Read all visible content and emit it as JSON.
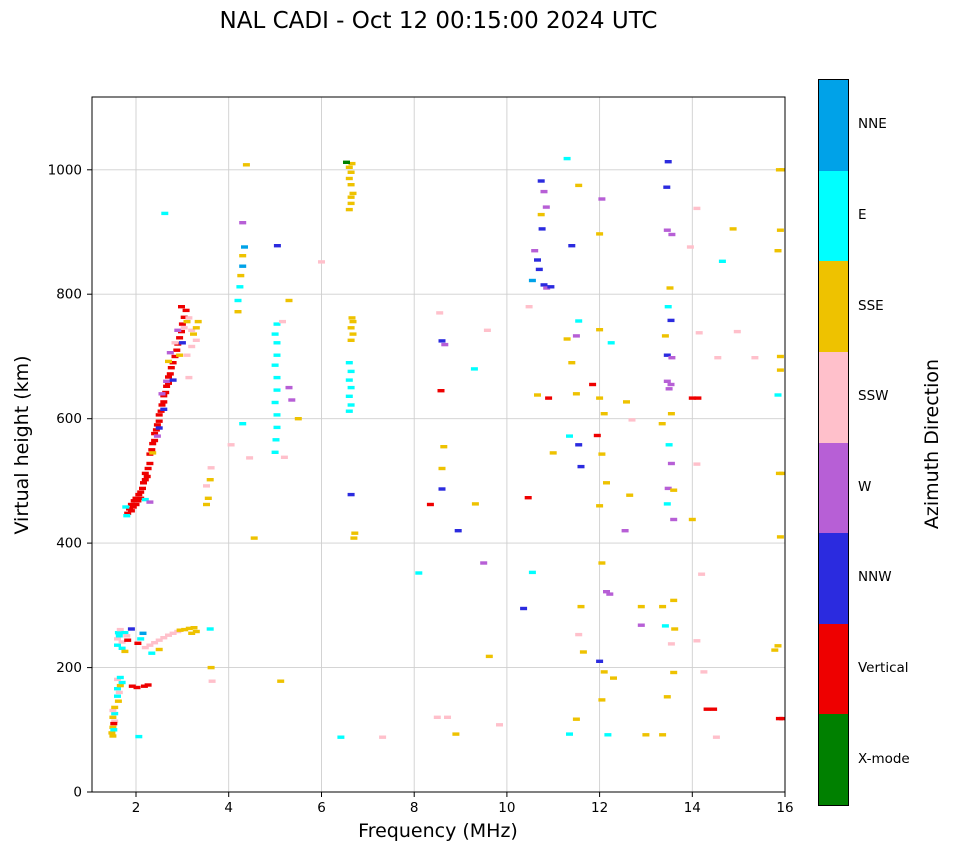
{
  "title": "NAL CADI - Oct 12 00:15:00 2024 UTC",
  "axes": {
    "xlabel": "Frequency (MHz)",
    "ylabel": "Virtual height (km)"
  },
  "colorbar": {
    "title": "Azimuth Direction"
  },
  "chart_data": {
    "type": "scatter",
    "title": "NAL CADI - Oct 12 00:15:00 2024 UTC",
    "xlabel": "Frequency (MHz)",
    "ylabel": "Virtual height (km)",
    "xlim": [
      1.05,
      16
    ],
    "ylim": [
      0,
      1117
    ],
    "xticks": [
      2,
      4,
      6,
      8,
      10,
      12,
      14,
      16
    ],
    "yticks": [
      0,
      200,
      400,
      600,
      800,
      1000
    ],
    "grid": true,
    "legend_position": "right-colorbar",
    "categories": [
      {
        "label": "NNE",
        "color": "#00a2e8"
      },
      {
        "label": "E",
        "color": "#00ffff"
      },
      {
        "label": "SSE",
        "color": "#eec200"
      },
      {
        "label": "SSW",
        "color": "#ffc0cb"
      },
      {
        "label": "W",
        "color": "#b75fd6"
      },
      {
        "label": "NNW",
        "color": "#2b2bdf"
      },
      {
        "label": "Vertical",
        "color": "#ee0000"
      },
      {
        "label": "X-mode",
        "color": "#008000"
      }
    ],
    "points": [
      [
        1.82,
        448,
        6
      ],
      [
        1.86,
        455,
        6
      ],
      [
        1.9,
        452,
        6
      ],
      [
        1.9,
        462,
        6
      ],
      [
        1.94,
        458,
        6
      ],
      [
        1.96,
        468,
        6
      ],
      [
        2.0,
        462,
        6
      ],
      [
        2.0,
        472,
        6
      ],
      [
        2.04,
        468,
        6
      ],
      [
        2.06,
        478,
        6
      ],
      [
        2.1,
        472,
        6
      ],
      [
        2.1,
        482,
        6
      ],
      [
        2.14,
        488,
        6
      ],
      [
        2.16,
        497,
        6
      ],
      [
        2.2,
        502,
        6
      ],
      [
        2.2,
        512,
        6
      ],
      [
        2.24,
        507,
        6
      ],
      [
        2.26,
        520,
        6
      ],
      [
        2.3,
        528,
        6
      ],
      [
        2.3,
        543,
        6
      ],
      [
        2.34,
        550,
        6
      ],
      [
        2.36,
        560,
        6
      ],
      [
        2.4,
        565,
        6
      ],
      [
        2.4,
        576,
        6
      ],
      [
        2.44,
        582,
        6
      ],
      [
        2.46,
        590,
        6
      ],
      [
        2.5,
        596,
        6
      ],
      [
        2.5,
        606,
        6
      ],
      [
        2.54,
        612,
        6
      ],
      [
        2.56,
        622,
        6
      ],
      [
        2.6,
        627,
        6
      ],
      [
        2.6,
        637,
        6
      ],
      [
        2.64,
        642,
        6
      ],
      [
        2.66,
        652,
        6
      ],
      [
        2.7,
        657,
        6
      ],
      [
        2.7,
        667,
        6
      ],
      [
        2.74,
        672,
        6
      ],
      [
        2.76,
        682,
        6
      ],
      [
        2.8,
        690,
        6
      ],
      [
        2.84,
        700,
        6
      ],
      [
        2.88,
        710,
        6
      ],
      [
        2.9,
        720,
        6
      ],
      [
        2.94,
        730,
        6
      ],
      [
        2.98,
        740,
        6
      ],
      [
        3.0,
        752,
        6
      ],
      [
        3.04,
        763,
        6
      ],
      [
        3.08,
        774,
        6
      ],
      [
        2.98,
        780,
        6
      ],
      [
        2.36,
        545,
        2
      ],
      [
        2.46,
        572,
        4
      ],
      [
        2.5,
        585,
        5
      ],
      [
        2.56,
        640,
        4
      ],
      [
        2.6,
        615,
        5
      ],
      [
        2.66,
        660,
        4
      ],
      [
        2.7,
        692,
        2
      ],
      [
        2.74,
        706,
        4
      ],
      [
        2.8,
        662,
        5
      ],
      [
        2.84,
        722,
        3
      ],
      [
        2.9,
        742,
        4
      ],
      [
        2.94,
        702,
        2
      ],
      [
        3.0,
        722,
        5
      ],
      [
        3.04,
        746,
        3
      ],
      [
        3.1,
        756,
        2
      ],
      [
        3.14,
        762,
        3
      ],
      [
        3.2,
        742,
        3
      ],
      [
        3.24,
        736,
        2
      ],
      [
        3.3,
        746,
        2
      ],
      [
        3.1,
        702,
        3
      ],
      [
        3.2,
        716,
        3
      ],
      [
        3.3,
        726,
        3
      ],
      [
        3.14,
        666,
        3
      ],
      [
        3.34,
        756,
        2
      ],
      [
        2.2,
        470,
        1
      ],
      [
        1.78,
        458,
        1
      ],
      [
        1.8,
        444,
        1
      ],
      [
        2.3,
        466,
        4
      ],
      [
        1.48,
        95,
        2
      ],
      [
        1.5,
        104,
        2
      ],
      [
        1.52,
        100,
        1
      ],
      [
        1.54,
        114,
        3
      ],
      [
        1.5,
        120,
        2
      ],
      [
        1.54,
        126,
        1
      ],
      [
        1.5,
        131,
        3
      ],
      [
        1.54,
        136,
        2
      ],
      [
        1.52,
        110,
        6
      ],
      [
        1.5,
        90,
        2
      ],
      [
        1.6,
        154,
        1
      ],
      [
        1.64,
        160,
        3
      ],
      [
        1.6,
        166,
        1
      ],
      [
        1.66,
        171,
        2
      ],
      [
        1.7,
        176,
        1
      ],
      [
        1.6,
        181,
        3
      ],
      [
        1.66,
        184,
        1
      ],
      [
        1.62,
        146,
        2
      ],
      [
        1.92,
        170,
        6
      ],
      [
        2.02,
        168,
        6
      ],
      [
        2.18,
        170,
        6
      ],
      [
        2.26,
        172,
        6
      ],
      [
        1.6,
        236,
        1
      ],
      [
        1.6,
        246,
        3
      ],
      [
        1.64,
        251,
        1
      ],
      [
        1.62,
        256,
        1
      ],
      [
        1.66,
        261,
        3
      ],
      [
        1.7,
        241,
        3
      ],
      [
        1.7,
        231,
        1
      ],
      [
        1.76,
        256,
        1
      ],
      [
        1.8,
        251,
        3
      ],
      [
        1.9,
        262,
        5
      ],
      [
        1.82,
        244,
        6
      ],
      [
        1.76,
        226,
        2
      ],
      [
        2.04,
        239,
        6
      ],
      [
        2.15,
        255,
        0
      ],
      [
        2.1,
        246,
        1
      ],
      [
        2.34,
        223,
        1
      ],
      [
        2.5,
        229,
        2
      ],
      [
        2.2,
        232,
        3
      ],
      [
        2.3,
        236,
        3
      ],
      [
        2.4,
        240,
        3
      ],
      [
        2.5,
        244,
        3
      ],
      [
        2.6,
        248,
        3
      ],
      [
        2.7,
        252,
        3
      ],
      [
        2.8,
        255,
        3
      ],
      [
        2.9,
        258,
        3
      ],
      [
        2.95,
        260,
        2
      ],
      [
        3.05,
        261,
        2
      ],
      [
        3.15,
        263,
        2
      ],
      [
        3.25,
        264,
        2
      ],
      [
        3.3,
        258,
        2
      ],
      [
        3.2,
        255,
        2
      ],
      [
        3.6,
        262,
        1
      ],
      [
        3.62,
        200,
        2
      ],
      [
        3.64,
        178,
        3
      ],
      [
        2.06,
        89,
        1
      ],
      [
        3.52,
        462,
        2
      ],
      [
        3.56,
        472,
        2
      ],
      [
        3.52,
        492,
        3
      ],
      [
        3.6,
        502,
        2
      ],
      [
        3.62,
        521,
        3
      ],
      [
        4.05,
        558,
        3
      ],
      [
        4.45,
        537,
        3
      ],
      [
        4.55,
        408,
        2
      ],
      [
        4.2,
        772,
        2
      ],
      [
        4.2,
        790,
        1
      ],
      [
        4.24,
        812,
        1
      ],
      [
        4.26,
        830,
        2
      ],
      [
        4.3,
        845,
        0
      ],
      [
        4.3,
        862,
        2
      ],
      [
        4.34,
        876,
        0
      ],
      [
        4.3,
        915,
        4
      ],
      [
        4.38,
        1008,
        2
      ],
      [
        4.3,
        592,
        1
      ],
      [
        5.0,
        546,
        1
      ],
      [
        5.02,
        566,
        1
      ],
      [
        5.04,
        586,
        1
      ],
      [
        5.04,
        606,
        1
      ],
      [
        5.0,
        626,
        1
      ],
      [
        5.04,
        646,
        1
      ],
      [
        5.04,
        666,
        1
      ],
      [
        5.0,
        686,
        1
      ],
      [
        5.04,
        702,
        1
      ],
      [
        5.04,
        722,
        1
      ],
      [
        5.0,
        736,
        1
      ],
      [
        5.04,
        752,
        1
      ],
      [
        5.05,
        878,
        5
      ],
      [
        5.3,
        650,
        4
      ],
      [
        5.36,
        630,
        4
      ],
      [
        5.5,
        600,
        2
      ],
      [
        5.2,
        538,
        3
      ],
      [
        5.16,
        756,
        3
      ],
      [
        5.12,
        178,
        2
      ],
      [
        5.3,
        790,
        2
      ],
      [
        6.0,
        852,
        3
      ],
      [
        2.62,
        930,
        1
      ],
      [
        6.6,
        612,
        1
      ],
      [
        6.64,
        622,
        1
      ],
      [
        6.6,
        636,
        1
      ],
      [
        6.64,
        650,
        1
      ],
      [
        6.6,
        662,
        1
      ],
      [
        6.64,
        676,
        1
      ],
      [
        6.6,
        690,
        1
      ],
      [
        6.64,
        726,
        2
      ],
      [
        6.68,
        736,
        2
      ],
      [
        6.64,
        746,
        2
      ],
      [
        6.68,
        756,
        2
      ],
      [
        6.66,
        762,
        2
      ],
      [
        6.6,
        936,
        2
      ],
      [
        6.64,
        946,
        2
      ],
      [
        6.64,
        956,
        2
      ],
      [
        6.68,
        962,
        2
      ],
      [
        6.64,
        976,
        2
      ],
      [
        6.6,
        986,
        2
      ],
      [
        6.64,
        996,
        2
      ],
      [
        6.6,
        1004,
        2
      ],
      [
        6.66,
        1010,
        2
      ],
      [
        6.54,
        1012,
        7
      ],
      [
        6.64,
        478,
        5
      ],
      [
        6.7,
        408,
        2
      ],
      [
        6.72,
        416,
        2
      ],
      [
        6.42,
        88,
        1
      ],
      [
        7.32,
        88,
        3
      ],
      [
        8.1,
        352,
        1
      ],
      [
        8.35,
        462,
        6
      ],
      [
        8.55,
        770,
        3
      ],
      [
        8.6,
        725,
        5
      ],
      [
        8.66,
        719,
        4
      ],
      [
        8.58,
        645,
        6
      ],
      [
        8.64,
        555,
        2
      ],
      [
        8.6,
        520,
        2
      ],
      [
        8.6,
        487,
        5
      ],
      [
        8.95,
        420,
        5
      ],
      [
        8.5,
        120,
        3
      ],
      [
        8.72,
        120,
        3
      ],
      [
        8.9,
        93,
        2
      ],
      [
        9.32,
        463,
        2
      ],
      [
        9.3,
        680,
        1
      ],
      [
        9.58,
        742,
        3
      ],
      [
        9.5,
        368,
        4
      ],
      [
        9.62,
        218,
        2
      ],
      [
        9.84,
        108,
        3
      ],
      [
        10.48,
        780,
        3
      ],
      [
        10.6,
        870,
        4
      ],
      [
        10.66,
        855,
        5
      ],
      [
        10.7,
        840,
        5
      ],
      [
        10.55,
        822,
        0
      ],
      [
        10.74,
        982,
        5
      ],
      [
        10.8,
        965,
        4
      ],
      [
        10.74,
        928,
        2
      ],
      [
        10.85,
        940,
        4
      ],
      [
        10.76,
        905,
        5
      ],
      [
        10.8,
        815,
        5
      ],
      [
        10.86,
        810,
        4
      ],
      [
        10.66,
        638,
        2
      ],
      [
        10.9,
        633,
        6
      ],
      [
        10.55,
        353,
        1
      ],
      [
        10.36,
        295,
        5
      ],
      [
        10.46,
        473,
        6
      ],
      [
        11.0,
        545,
        2
      ],
      [
        10.95,
        812,
        5
      ],
      [
        11.3,
        1018,
        1
      ],
      [
        11.55,
        975,
        2
      ],
      [
        11.4,
        878,
        5
      ],
      [
        11.55,
        757,
        1
      ],
      [
        11.3,
        728,
        2
      ],
      [
        11.5,
        733,
        4
      ],
      [
        11.4,
        690,
        2
      ],
      [
        11.5,
        640,
        2
      ],
      [
        11.35,
        572,
        1
      ],
      [
        11.55,
        558,
        5
      ],
      [
        11.6,
        523,
        5
      ],
      [
        11.6,
        298,
        2
      ],
      [
        11.55,
        253,
        3
      ],
      [
        11.65,
        225,
        2
      ],
      [
        11.35,
        93,
        1
      ],
      [
        11.5,
        117,
        2
      ],
      [
        11.85,
        655,
        6
      ],
      [
        12.05,
        953,
        4
      ],
      [
        12.0,
        897,
        2
      ],
      [
        12.0,
        743,
        2
      ],
      [
        12.25,
        722,
        1
      ],
      [
        12.0,
        633,
        2
      ],
      [
        12.1,
        608,
        2
      ],
      [
        11.95,
        573,
        6
      ],
      [
        12.05,
        543,
        2
      ],
      [
        12.15,
        497,
        2
      ],
      [
        12.0,
        460,
        2
      ],
      [
        12.05,
        368,
        2
      ],
      [
        12.15,
        322,
        4
      ],
      [
        12.22,
        318,
        4
      ],
      [
        12.0,
        210,
        5
      ],
      [
        12.1,
        193,
        2
      ],
      [
        12.3,
        183,
        2
      ],
      [
        12.05,
        148,
        2
      ],
      [
        12.18,
        92,
        1
      ],
      [
        12.55,
        420,
        4
      ],
      [
        12.58,
        627,
        2
      ],
      [
        12.7,
        598,
        3
      ],
      [
        12.65,
        477,
        2
      ],
      [
        12.9,
        298,
        2
      ],
      [
        12.9,
        268,
        4
      ],
      [
        13.0,
        92,
        2
      ],
      [
        13.48,
        1013,
        5
      ],
      [
        13.45,
        972,
        5
      ],
      [
        13.46,
        903,
        4
      ],
      [
        13.56,
        896,
        4
      ],
      [
        13.52,
        810,
        2
      ],
      [
        13.48,
        780,
        1
      ],
      [
        13.54,
        758,
        5
      ],
      [
        13.42,
        733,
        2
      ],
      [
        13.46,
        702,
        5
      ],
      [
        13.56,
        698,
        4
      ],
      [
        13.46,
        660,
        4
      ],
      [
        13.54,
        655,
        4
      ],
      [
        13.5,
        648,
        4
      ],
      [
        13.55,
        608,
        2
      ],
      [
        13.35,
        592,
        2
      ],
      [
        13.5,
        558,
        1
      ],
      [
        13.55,
        528,
        4
      ],
      [
        13.48,
        488,
        4
      ],
      [
        13.6,
        485,
        2
      ],
      [
        13.46,
        463,
        1
      ],
      [
        13.6,
        438,
        4
      ],
      [
        13.6,
        308,
        2
      ],
      [
        13.36,
        298,
        2
      ],
      [
        13.42,
        267,
        1
      ],
      [
        13.62,
        262,
        2
      ],
      [
        13.55,
        238,
        3
      ],
      [
        13.6,
        192,
        2
      ],
      [
        13.46,
        153,
        2
      ],
      [
        13.36,
        92,
        2
      ],
      [
        14.1,
        938,
        3
      ],
      [
        13.96,
        876,
        3
      ],
      [
        14.15,
        738,
        3
      ],
      [
        14.55,
        698,
        3
      ],
      [
        14.0,
        633,
        6
      ],
      [
        14.12,
        633,
        6
      ],
      [
        14.1,
        527,
        3
      ],
      [
        14.0,
        438,
        2
      ],
      [
        14.2,
        350,
        3
      ],
      [
        14.1,
        243,
        3
      ],
      [
        14.25,
        193,
        3
      ],
      [
        14.32,
        133,
        6
      ],
      [
        14.46,
        133,
        6
      ],
      [
        14.52,
        88,
        3
      ],
      [
        14.65,
        853,
        1
      ],
      [
        14.88,
        905,
        2
      ],
      [
        14.97,
        740,
        3
      ],
      [
        15.35,
        698,
        3
      ],
      [
        15.88,
        1000,
        2
      ],
      [
        15.95,
        1000,
        2
      ],
      [
        15.9,
        903,
        2
      ],
      [
        15.85,
        870,
        2
      ],
      [
        15.9,
        700,
        2
      ],
      [
        15.9,
        678,
        2
      ],
      [
        15.85,
        638,
        1
      ],
      [
        15.88,
        512,
        2
      ],
      [
        15.95,
        512,
        2
      ],
      [
        15.9,
        410,
        2
      ],
      [
        15.85,
        235,
        2
      ],
      [
        15.78,
        228,
        2
      ],
      [
        15.88,
        118,
        6
      ],
      [
        15.95,
        118,
        6
      ]
    ]
  }
}
